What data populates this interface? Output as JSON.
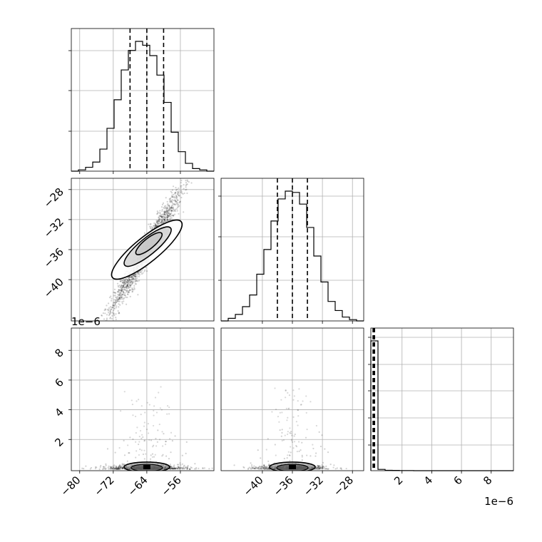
{
  "chart_data": {
    "type": "corner",
    "title": "",
    "parameters": [
      {
        "range": [
          -82,
          -48
        ],
        "ticks": [
          -80,
          -72,
          -64,
          -56
        ],
        "tick_labels": [
          "−80",
          "−72",
          "−64",
          "−56"
        ],
        "quantiles": [
          -68.0,
          -64.0,
          -60.0
        ]
      },
      {
        "range": [
          -45.5,
          -26.5
        ],
        "ticks": [
          -40,
          -36,
          -32,
          -28
        ],
        "tick_labels": [
          "−40",
          "−36",
          "−32",
          "−28"
        ],
        "quantiles": [
          -38.0,
          -36.0,
          -34.0
        ]
      },
      {
        "range": [
          -0.1,
          9.5
        ],
        "ticks": [
          2,
          4,
          6,
          8
        ],
        "tick_labels": [
          "2",
          "4",
          "6",
          "8"
        ],
        "quantiles": [
          0.05,
          0.1,
          0.15
        ]
      }
    ],
    "offset_text": "1e−6",
    "histograms": [
      {
        "edges": [
          -82,
          -80.3,
          -78.6,
          -76.9,
          -75.2,
          -73.5,
          -71.8,
          -70.1,
          -68.4,
          -66.7,
          -65.0,
          -63.3,
          -61.6,
          -59.9,
          -58.2,
          -56.5,
          -54.8,
          -53.1,
          -51.4,
          -49.7,
          -48
        ],
        "counts": [
          0,
          0.01,
          0.03,
          0.07,
          0.17,
          0.33,
          0.55,
          0.78,
          0.93,
          1.0,
          0.97,
          0.89,
          0.74,
          0.53,
          0.3,
          0.15,
          0.06,
          0.02,
          0.01,
          0
        ]
      },
      {
        "edges": [
          -45.5,
          -44.55,
          -43.6,
          -42.65,
          -41.7,
          -40.75,
          -39.8,
          -38.85,
          -37.9,
          -36.95,
          -36.0,
          -35.05,
          -34.1,
          -33.15,
          -32.2,
          -31.25,
          -30.3,
          -29.35,
          -28.4,
          -27.45,
          -26.5
        ],
        "counts": [
          0,
          0.02,
          0.05,
          0.11,
          0.2,
          0.36,
          0.55,
          0.77,
          0.94,
          1.0,
          0.99,
          0.9,
          0.72,
          0.5,
          0.3,
          0.15,
          0.08,
          0.03,
          0.01,
          0
        ]
      },
      {
        "edges": [
          -0.1,
          0.38,
          0.86,
          1.34,
          1.82,
          2.3,
          2.78,
          3.26,
          3.74,
          4.22,
          4.7,
          5.18,
          5.66,
          6.14,
          6.62,
          7.1,
          7.58,
          8.06,
          8.54,
          9.02,
          9.5
        ],
        "counts": [
          1.0,
          0.01,
          0.003,
          0.002,
          0.001,
          0.001,
          0,
          0,
          0,
          0,
          0,
          0,
          0,
          0,
          0,
          0,
          0,
          0,
          0,
          0
        ]
      }
    ],
    "joint_1_0": {
      "correlation_slope": 0.42,
      "density_peak": [
        -64.0,
        -36.0
      ],
      "contour_levels": [
        {
          "center": [
            -64.0,
            -36.0
          ],
          "half_major": 13.5,
          "half_minor": 1.7
        },
        {
          "center": [
            -63.8,
            -35.6
          ],
          "half_major": 9.0,
          "half_minor": 1.15
        },
        {
          "center": [
            -63.5,
            -35.2
          ],
          "half_major": 5.0,
          "half_minor": 0.7
        }
      ]
    },
    "joint_2_0": {
      "density_peak": [
        -64.0,
        0.2
      ]
    },
    "joint_2_1": {
      "density_peak": [
        -36.0,
        0.2
      ]
    }
  }
}
